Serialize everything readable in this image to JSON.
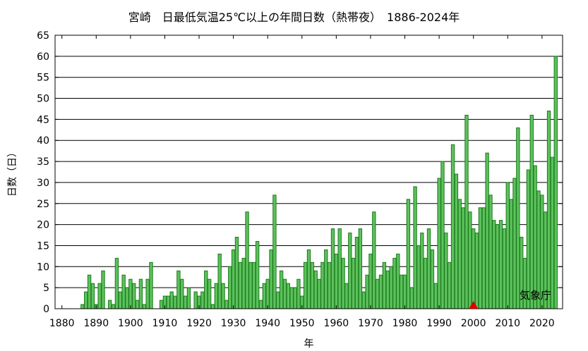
{
  "chart_data": {
    "type": "bar",
    "title": "宮崎　日最低気温25℃以上の年間日数（熱帯夜）　1886-2024年",
    "xlabel": "年",
    "ylabel": "日数（日）",
    "credit": "気象庁",
    "xlim": [
      1878,
      2026
    ],
    "ylim": [
      0,
      65
    ],
    "x_ticks": [
      1880,
      1890,
      1900,
      1910,
      1920,
      1930,
      1940,
      1950,
      1960,
      1970,
      1980,
      1990,
      2000,
      2010,
      2020
    ],
    "y_ticks": [
      0,
      5,
      10,
      15,
      20,
      25,
      30,
      35,
      40,
      45,
      50,
      55,
      60,
      65
    ],
    "grid": "horizontal",
    "bar_color": "#5cc25c",
    "bar_edge_color": "#1e7a1e",
    "marker": {
      "x": 2000,
      "y": 0,
      "shape": "triangle",
      "color": "#e00000"
    },
    "x": [
      1886,
      1887,
      1888,
      1889,
      1890,
      1891,
      1892,
      1893,
      1894,
      1895,
      1896,
      1897,
      1898,
      1899,
      1900,
      1901,
      1902,
      1903,
      1904,
      1905,
      1906,
      1907,
      1908,
      1909,
      1910,
      1911,
      1912,
      1913,
      1914,
      1915,
      1916,
      1917,
      1918,
      1919,
      1920,
      1921,
      1922,
      1923,
      1924,
      1925,
      1926,
      1927,
      1928,
      1929,
      1930,
      1931,
      1932,
      1933,
      1934,
      1935,
      1936,
      1937,
      1938,
      1939,
      1940,
      1941,
      1942,
      1943,
      1944,
      1945,
      1946,
      1947,
      1948,
      1949,
      1950,
      1951,
      1952,
      1953,
      1954,
      1955,
      1956,
      1957,
      1958,
      1959,
      1960,
      1961,
      1962,
      1963,
      1964,
      1965,
      1966,
      1967,
      1968,
      1969,
      1970,
      1971,
      1972,
      1973,
      1974,
      1975,
      1976,
      1977,
      1978,
      1979,
      1980,
      1981,
      1982,
      1983,
      1984,
      1985,
      1986,
      1987,
      1988,
      1989,
      1990,
      1991,
      1992,
      1993,
      1994,
      1995,
      1996,
      1997,
      1998,
      1999,
      2000,
      2001,
      2002,
      2003,
      2004,
      2005,
      2006,
      2007,
      2008,
      2009,
      2010,
      2011,
      2012,
      2013,
      2014,
      2015,
      2016,
      2017,
      2018,
      2019,
      2020,
      2021,
      2022,
      2023,
      2024
    ],
    "values": [
      1,
      4,
      8,
      6,
      1,
      6,
      9,
      0,
      2,
      1,
      12,
      4,
      8,
      5,
      7,
      6,
      2,
      7,
      1,
      7,
      11,
      0,
      0,
      2,
      3,
      3,
      4,
      3,
      9,
      7,
      3,
      5,
      0,
      4,
      3,
      4,
      9,
      7,
      1,
      6,
      13,
      6,
      2,
      10,
      14,
      17,
      11,
      12,
      23,
      11,
      11,
      16,
      2,
      6,
      7,
      14,
      27,
      4,
      9,
      7,
      6,
      5,
      5,
      7,
      3,
      11,
      14,
      11,
      9,
      7,
      11,
      14,
      11,
      19,
      13,
      19,
      12,
      6,
      18,
      12,
      17,
      19,
      4,
      8,
      13,
      23,
      7,
      8,
      11,
      9,
      10,
      12,
      13,
      8,
      8,
      26,
      5,
      29,
      15,
      18,
      12,
      19,
      14,
      6,
      31,
      35,
      18,
      11,
      39,
      32,
      26,
      24,
      46,
      23,
      19,
      18,
      24,
      24,
      37,
      27,
      21,
      20,
      21,
      19,
      30,
      26,
      31,
      43,
      17,
      12,
      33,
      46,
      34,
      28,
      27,
      23,
      47,
      36,
      60
    ]
  }
}
